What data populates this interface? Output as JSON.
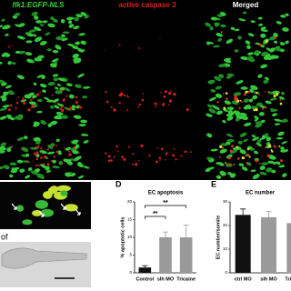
{
  "figure": {
    "column_titles": [
      "flk1:EGFP-NLS",
      "active caspase 3",
      "Merged"
    ],
    "inset_label": "of"
  },
  "chart_data": [
    {
      "type": "bar",
      "panel_label": "D",
      "title": "EC apoptosis",
      "y_label": "% apoptotic cells",
      "categories": [
        "Control",
        "slh MO",
        "Tricaine"
      ],
      "values": [
        1.5,
        10,
        10
      ],
      "errors": [
        0.5,
        1.5,
        3.5
      ],
      "colors": [
        "#111111",
        "#9a9a9a",
        "#9a9a9a"
      ],
      "ylim": [
        0,
        20
      ],
      "yticks": [
        0,
        5,
        10,
        15,
        20
      ],
      "brackets": [
        {
          "label": "**",
          "from": 0,
          "to": 1
        },
        {
          "label": "**",
          "from": 0,
          "to": 2
        }
      ]
    },
    {
      "type": "bar",
      "panel_label": "E",
      "title": "EC number",
      "y_label": "EC number/somite",
      "categories": [
        "ctrl MO",
        "slh MO",
        "Tricaine"
      ],
      "values": [
        24.5,
        23.5,
        21
      ],
      "errors": [
        2.5,
        2.5,
        2
      ],
      "colors": [
        "#111111",
        "#9a9a9a",
        "#9a9a9a"
      ],
      "ylim": [
        0,
        30
      ],
      "yticks": [
        0,
        10,
        20,
        30
      ]
    }
  ]
}
